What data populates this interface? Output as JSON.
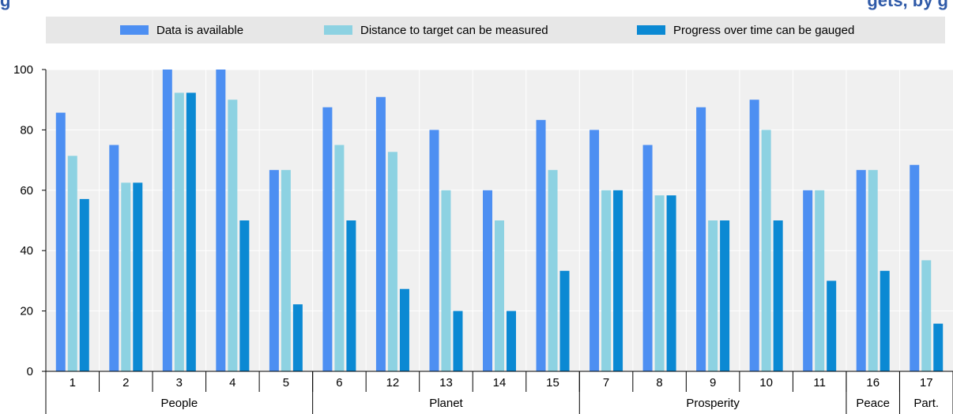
{
  "title": "g",
  "title_suffix": "gets, by g",
  "legend": {
    "items": [
      {
        "label": "Data is available",
        "color": "#4d8ff2"
      },
      {
        "label": "Distance to target can be measured",
        "color": "#8dd2e2"
      },
      {
        "label": "Progress over time can be gauged",
        "color": "#0b89d3"
      }
    ]
  },
  "colors": {
    "plot_bg": "#f0f0f0",
    "grid": "#ffffff",
    "axis": "#000000"
  },
  "chart_data": {
    "type": "bar",
    "categories": [
      "1",
      "2",
      "3",
      "4",
      "5",
      "6",
      "12",
      "13",
      "14",
      "15",
      "7",
      "8",
      "9",
      "10",
      "11",
      "16",
      "17"
    ],
    "groups": [
      {
        "label": "People",
        "count": 5
      },
      {
        "label": "Planet",
        "count": 5
      },
      {
        "label": "Prosperity",
        "count": 5
      },
      {
        "label": "Peace",
        "count": 1
      },
      {
        "label": "Part.",
        "count": 1
      }
    ],
    "series": [
      {
        "name": "Data is available",
        "values": [
          85.7,
          75,
          100,
          100,
          66.7,
          87.5,
          90.9,
          80,
          60,
          83.3,
          80,
          75,
          87.5,
          90,
          60,
          66.7,
          68.4
        ]
      },
      {
        "name": "Distance to target can be measured",
        "values": [
          71.4,
          62.5,
          92.3,
          90,
          66.7,
          75,
          72.7,
          60,
          50,
          66.7,
          60,
          58.3,
          50,
          80,
          60,
          66.7,
          36.8
        ]
      },
      {
        "name": "Progress over time can be gauged",
        "values": [
          57.1,
          62.5,
          92.3,
          50,
          22.2,
          50,
          27.3,
          20,
          20,
          33.3,
          60,
          58.3,
          50,
          50,
          30,
          33.3,
          15.8
        ]
      }
    ],
    "ylim": [
      0,
      100
    ],
    "yticks": [
      0,
      20,
      40,
      60,
      80,
      100
    ],
    "grid": true,
    "legend_position": "top"
  }
}
